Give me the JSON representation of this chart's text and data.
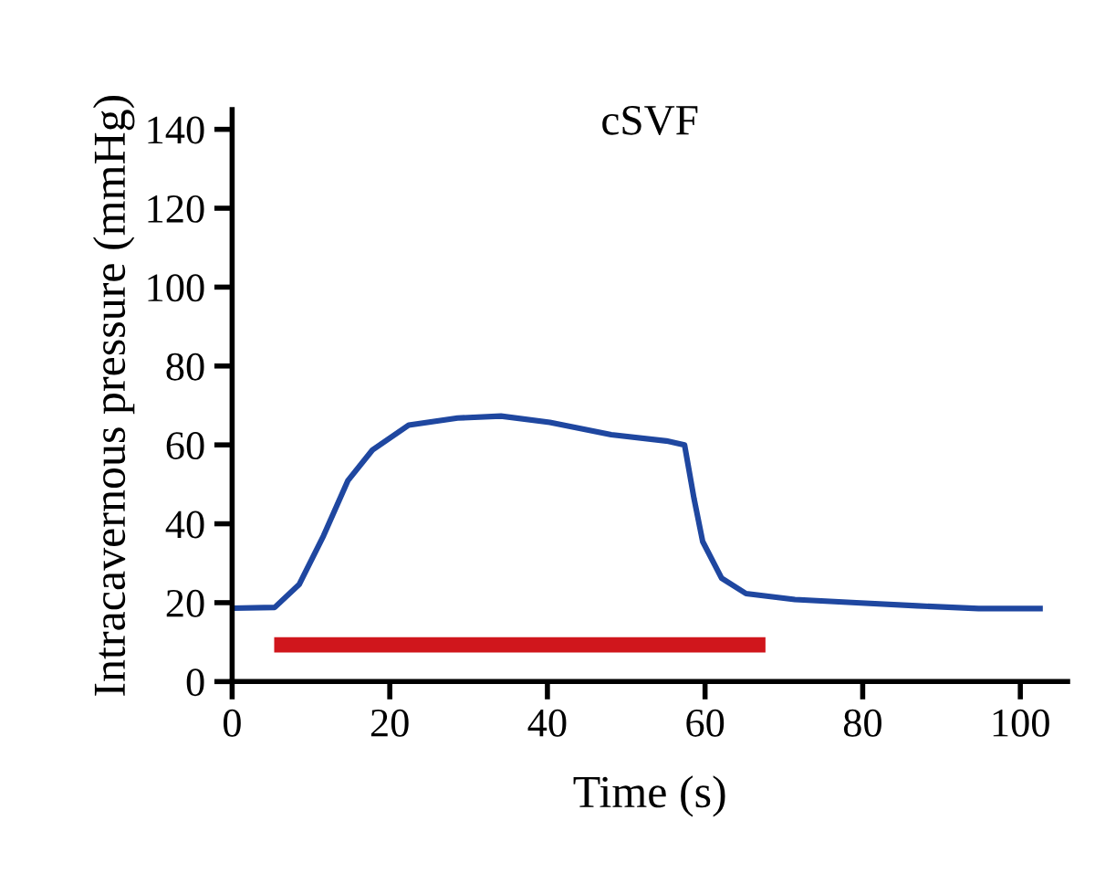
{
  "chart_data": {
    "type": "line",
    "title": "cSVF",
    "xlabel": "Time (s)",
    "ylabel": "Intracavernous pressure (mmHg)",
    "xlim": [
      0,
      106
    ],
    "ylim": [
      0,
      145
    ],
    "xticks": [
      0,
      20,
      40,
      60,
      80,
      100
    ],
    "yticks": [
      0,
      20,
      40,
      60,
      80,
      100,
      120,
      140
    ],
    "grid": false,
    "legend": false,
    "series": [
      {
        "color": "#1f47a0",
        "x": [
          0,
          5.4,
          8.5,
          11.6,
          14.7,
          17.8,
          22.4,
          28.6,
          34.1,
          40.3,
          48.1,
          55.1,
          57.4,
          58.6,
          59.7,
          62.1,
          65.2,
          71.4,
          79.2,
          86.9,
          94.7,
          102.5
        ],
        "values": [
          18.6,
          18.8,
          24.6,
          37,
          51,
          58.7,
          65,
          66.8,
          67.3,
          65.7,
          62.6,
          61,
          60,
          46.4,
          35.5,
          26.2,
          22.3,
          20.8,
          20,
          19.2,
          18.5,
          18.5
        ]
      },
      {
        "color": "#d0161c",
        "x": [
          6.3,
          66.7
        ],
        "values": [
          9.3,
          9.3
        ]
      }
    ]
  }
}
